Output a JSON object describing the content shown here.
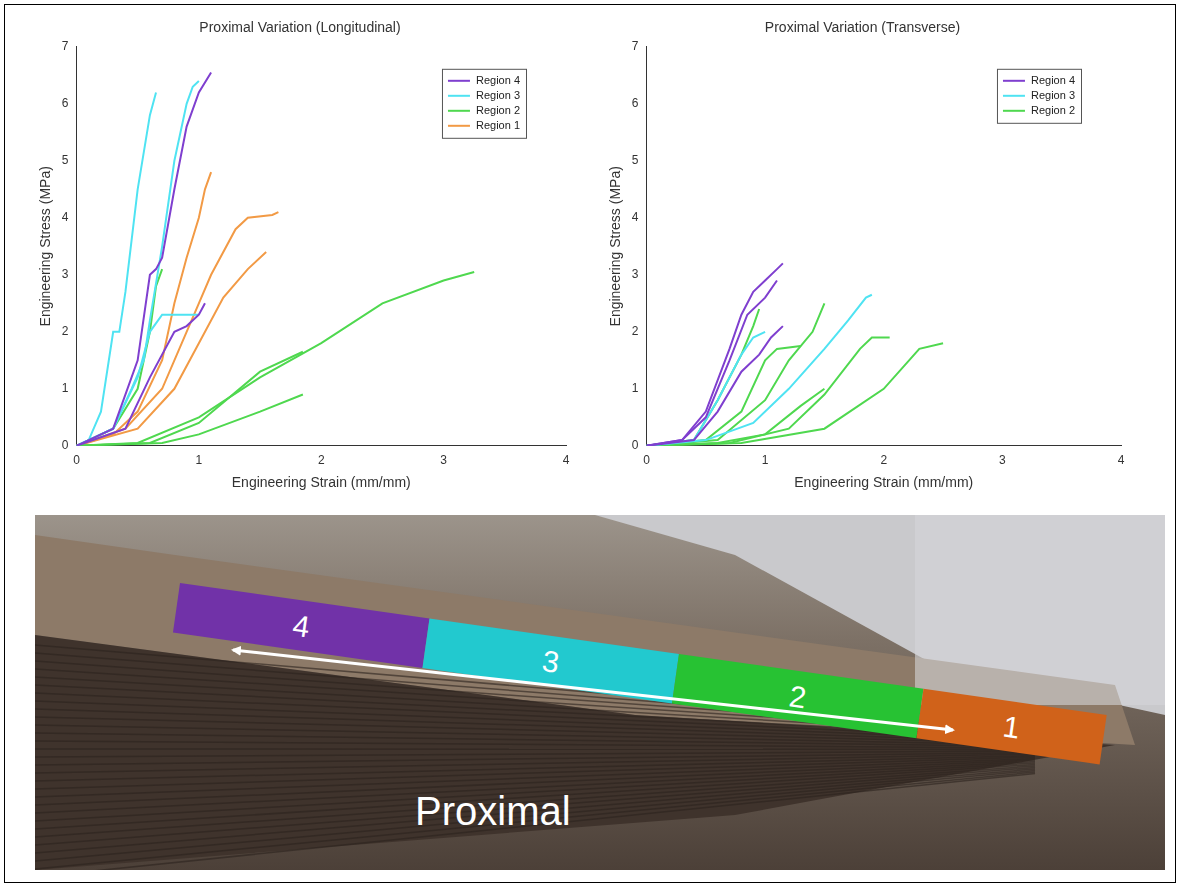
{
  "chart_data": [
    {
      "type": "line",
      "title": "Proximal Variation (Longitudinal)",
      "x_label": "Engineering Strain (mm/mm)",
      "y_label": "Engineering Stress (MPa)",
      "xlim": [
        0,
        4
      ],
      "xticks": [
        0,
        1,
        2,
        3,
        4
      ],
      "ylim": [
        0,
        7
      ],
      "yticks": [
        0,
        1,
        2,
        3,
        4,
        5,
        6,
        7
      ],
      "grid": false,
      "legend": "upper right",
      "series": [
        {
          "name": "Region 4",
          "color": "#7f3fcf",
          "curves": [
            {
              "x": [
                0,
                0.3,
                0.5,
                0.6,
                0.65,
                0.7,
                0.8,
                0.9,
                1.0,
                1.1
              ],
              "values": [
                0,
                0.3,
                1.5,
                3.0,
                3.1,
                3.3,
                4.5,
                5.6,
                6.2,
                6.55
              ]
            },
            {
              "x": [
                0,
                0.4,
                0.6,
                0.8,
                0.9,
                1.0,
                1.05
              ],
              "values": [
                0,
                0.3,
                1.2,
                2.0,
                2.1,
                2.3,
                2.5
              ]
            }
          ]
        },
        {
          "name": "Region 3",
          "color": "#4fe3f2",
          "curves": [
            {
              "x": [
                0,
                0.1,
                0.2,
                0.3,
                0.35,
                0.4,
                0.5,
                0.6,
                0.65
              ],
              "values": [
                0,
                0.1,
                0.6,
                2.0,
                2.0,
                2.7,
                4.5,
                5.8,
                6.2
              ]
            },
            {
              "x": [
                0,
                0.3,
                0.45,
                0.55,
                0.6,
                0.7,
                0.8,
                0.9,
                0.95,
                1.0
              ],
              "values": [
                0,
                0.3,
                1.0,
                1.5,
                2.2,
                3.5,
                5.0,
                6.0,
                6.3,
                6.4
              ]
            },
            {
              "x": [
                0,
                0.3,
                0.5,
                0.6,
                0.7,
                0.9,
                1.0
              ],
              "values": [
                0,
                0.3,
                1.2,
                2.0,
                2.3,
                2.3,
                2.3
              ]
            }
          ]
        },
        {
          "name": "Region 2",
          "color": "#4fd84f",
          "curves": [
            {
              "x": [
                0,
                0.3,
                0.5,
                0.6,
                0.65,
                0.7
              ],
              "values": [
                0,
                0.3,
                1.0,
                2.0,
                2.8,
                3.1
              ]
            },
            {
              "x": [
                0,
                0.5,
                1.0,
                1.5,
                2.0,
                2.5,
                3.0,
                3.25
              ],
              "values": [
                0,
                0.05,
                0.5,
                1.2,
                1.8,
                2.5,
                2.9,
                3.05
              ]
            },
            {
              "x": [
                0,
                0.6,
                1.0,
                1.5,
                1.85
              ],
              "values": [
                0,
                0.05,
                0.4,
                1.3,
                1.65
              ]
            },
            {
              "x": [
                0,
                0.7,
                1.0,
                1.5,
                1.85
              ],
              "values": [
                0,
                0.05,
                0.2,
                0.6,
                0.9
              ]
            }
          ]
        },
        {
          "name": "Region 1",
          "color": "#f29a45",
          "curves": [
            {
              "x": [
                0,
                0.3,
                0.5,
                0.7,
                0.8,
                0.9,
                1.0,
                1.05,
                1.1
              ],
              "values": [
                0,
                0.2,
                0.6,
                1.5,
                2.5,
                3.3,
                4.0,
                4.5,
                4.8
              ]
            },
            {
              "x": [
                0,
                0.4,
                0.7,
                0.9,
                1.0,
                1.1,
                1.3,
                1.4,
                1.6,
                1.65
              ],
              "values": [
                0,
                0.3,
                1.0,
                2.0,
                2.5,
                3.0,
                3.8,
                4.0,
                4.05,
                4.1
              ]
            },
            {
              "x": [
                0,
                0.5,
                0.8,
                1.0,
                1.2,
                1.4,
                1.55
              ],
              "values": [
                0,
                0.3,
                1.0,
                1.8,
                2.6,
                3.1,
                3.4
              ]
            }
          ]
        }
      ]
    },
    {
      "type": "line",
      "title": "Proximal Variation (Transverse)",
      "x_label": "Engineering Strain (mm/mm)",
      "y_label": "Engineering Stress (MPa)",
      "xlim": [
        0,
        4
      ],
      "xticks": [
        0,
        1,
        2,
        3,
        4
      ],
      "ylim": [
        0,
        7
      ],
      "yticks": [
        0,
        1,
        2,
        3,
        4,
        5,
        6,
        7
      ],
      "grid": false,
      "legend": "upper right",
      "series": [
        {
          "name": "Region 4",
          "color": "#7f3fcf",
          "curves": [
            {
              "x": [
                0,
                0.3,
                0.5,
                0.7,
                0.8,
                0.9,
                1.0,
                1.1,
                1.15
              ],
              "values": [
                0,
                0.1,
                0.6,
                1.7,
                2.3,
                2.7,
                2.9,
                3.1,
                3.2
              ]
            },
            {
              "x": [
                0,
                0.3,
                0.5,
                0.7,
                0.85,
                1.0,
                1.1
              ],
              "values": [
                0,
                0.1,
                0.5,
                1.5,
                2.3,
                2.6,
                2.9
              ]
            },
            {
              "x": [
                0,
                0.4,
                0.6,
                0.8,
                0.95,
                1.05,
                1.15
              ],
              "values": [
                0,
                0.1,
                0.6,
                1.3,
                1.6,
                1.9,
                2.1
              ]
            }
          ]
        },
        {
          "name": "Region 3",
          "color": "#4fe3f2",
          "curves": [
            {
              "x": [
                0,
                0.4,
                0.6,
                0.8,
                0.9,
                1.0
              ],
              "values": [
                0,
                0.1,
                0.8,
                1.6,
                1.9,
                2.0
              ]
            },
            {
              "x": [
                0,
                0.5,
                0.9,
                1.2,
                1.5,
                1.7,
                1.85,
                1.9
              ],
              "values": [
                0,
                0.1,
                0.4,
                1.0,
                1.7,
                2.2,
                2.6,
                2.65
              ]
            }
          ]
        },
        {
          "name": "Region 2",
          "color": "#4fd84f",
          "curves": [
            {
              "x": [
                0,
                0.4,
                0.6,
                0.8,
                0.9,
                0.95
              ],
              "values": [
                0,
                0.1,
                0.8,
                1.6,
                2.1,
                2.4
              ]
            },
            {
              "x": [
                0,
                0.5,
                0.8,
                1.0,
                1.1,
                1.3
              ],
              "values": [
                0,
                0.1,
                0.6,
                1.5,
                1.7,
                1.75
              ]
            },
            {
              "x": [
                0,
                0.6,
                1.0,
                1.2,
                1.4,
                1.5
              ],
              "values": [
                0,
                0.1,
                0.8,
                1.5,
                2.0,
                2.5
              ]
            },
            {
              "x": [
                0,
                0.6,
                1.0,
                1.3,
                1.5
              ],
              "values": [
                0,
                0.05,
                0.2,
                0.7,
                1.0
              ]
            },
            {
              "x": [
                0,
                0.7,
                1.2,
                1.5,
                1.8,
                1.9,
                2.05
              ],
              "values": [
                0,
                0.05,
                0.3,
                0.9,
                1.7,
                1.9,
                1.9
              ]
            },
            {
              "x": [
                0,
                0.8,
                1.5,
                2.0,
                2.3,
                2.5
              ],
              "values": [
                0,
                0.05,
                0.3,
                1.0,
                1.7,
                1.8
              ]
            }
          ]
        }
      ]
    }
  ],
  "photo_panel": {
    "regions": [
      {
        "label": "4",
        "color": "#7132a8"
      },
      {
        "label": "3",
        "color": "#22c9cf"
      },
      {
        "label": "2",
        "color": "#27c233"
      },
      {
        "label": "1",
        "color": "#d0621a"
      }
    ],
    "arrow_label": "Proximal"
  }
}
